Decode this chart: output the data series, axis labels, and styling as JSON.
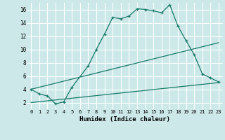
{
  "xlabel": "Humidex (Indice chaleur)",
  "background_color": "#cce8e8",
  "grid_color": "#ffffff",
  "line_color": "#1a7a6a",
  "xlim": [
    -0.5,
    23.5
  ],
  "ylim": [
    1.0,
    17.0
  ],
  "xticks": [
    0,
    1,
    2,
    3,
    4,
    5,
    6,
    7,
    8,
    9,
    10,
    11,
    12,
    13,
    14,
    15,
    16,
    17,
    18,
    19,
    20,
    21,
    22,
    23
  ],
  "yticks": [
    2,
    4,
    6,
    8,
    10,
    12,
    14,
    16
  ],
  "line1_x": [
    0,
    1,
    2,
    3,
    4,
    5,
    7,
    8,
    9,
    10,
    11,
    12,
    13,
    14,
    15,
    16,
    17,
    18,
    19,
    20,
    21,
    22,
    23
  ],
  "line1_y": [
    4.0,
    3.3,
    3.0,
    1.8,
    2.1,
    4.3,
    7.5,
    10.0,
    12.3,
    14.8,
    14.6,
    15.0,
    16.1,
    16.0,
    15.8,
    15.5,
    16.7,
    13.5,
    11.3,
    9.2,
    6.3,
    5.7,
    5.1
  ],
  "line2_x": [
    0,
    23
  ],
  "line2_y": [
    4.0,
    11.0
  ],
  "line3_x": [
    0,
    23
  ],
  "line3_y": [
    2.0,
    5.0
  ]
}
